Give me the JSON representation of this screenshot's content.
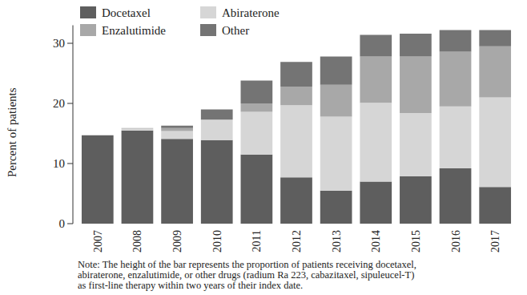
{
  "chart_data": {
    "type": "bar",
    "stacked": true,
    "y_label": "Percent of patients",
    "annotations": [
      "Note: The height of the bar represents the proportion of patients receiving docetaxel,",
      "abiraterone, enzalutimide, or other drugs (radium Ra 223, cabazitaxel, sipuleucel-T)",
      "as first-line therapy within two years of their index date."
    ],
    "categories": [
      "2007",
      "2008",
      "2009",
      "2010",
      "2011",
      "2012",
      "2013",
      "2014",
      "2015",
      "2016",
      "2017"
    ],
    "series": [
      {
        "name": "Docetaxel",
        "color": "#5e5e5e",
        "values": [
          14.7,
          15.5,
          14.1,
          13.9,
          11.5,
          7.7,
          5.5,
          7.0,
          7.9,
          9.2,
          6.1
        ]
      },
      {
        "name": "Abiraterone",
        "color": "#d6d6d6",
        "values": [
          0,
          0.3,
          1.3,
          3.4,
          7.1,
          12.0,
          12.3,
          13.1,
          10.5,
          10.3,
          14.9
        ]
      },
      {
        "name": "Enzalutimide",
        "color": "#a8a8a8",
        "values": [
          0,
          0.1,
          0.5,
          0,
          1.4,
          3.1,
          5.3,
          7.7,
          9.4,
          9.1,
          8.5
        ]
      },
      {
        "name": "Other",
        "color": "#747474",
        "values": [
          0,
          0,
          0.4,
          1.7,
          3.8,
          4.1,
          4.7,
          3.6,
          3.8,
          3.6,
          2.7
        ]
      }
    ],
    "ylim": [
      0,
      33
    ],
    "yticks": [
      0,
      10,
      20,
      30
    ],
    "legend": "top-left",
    "grid": false
  }
}
